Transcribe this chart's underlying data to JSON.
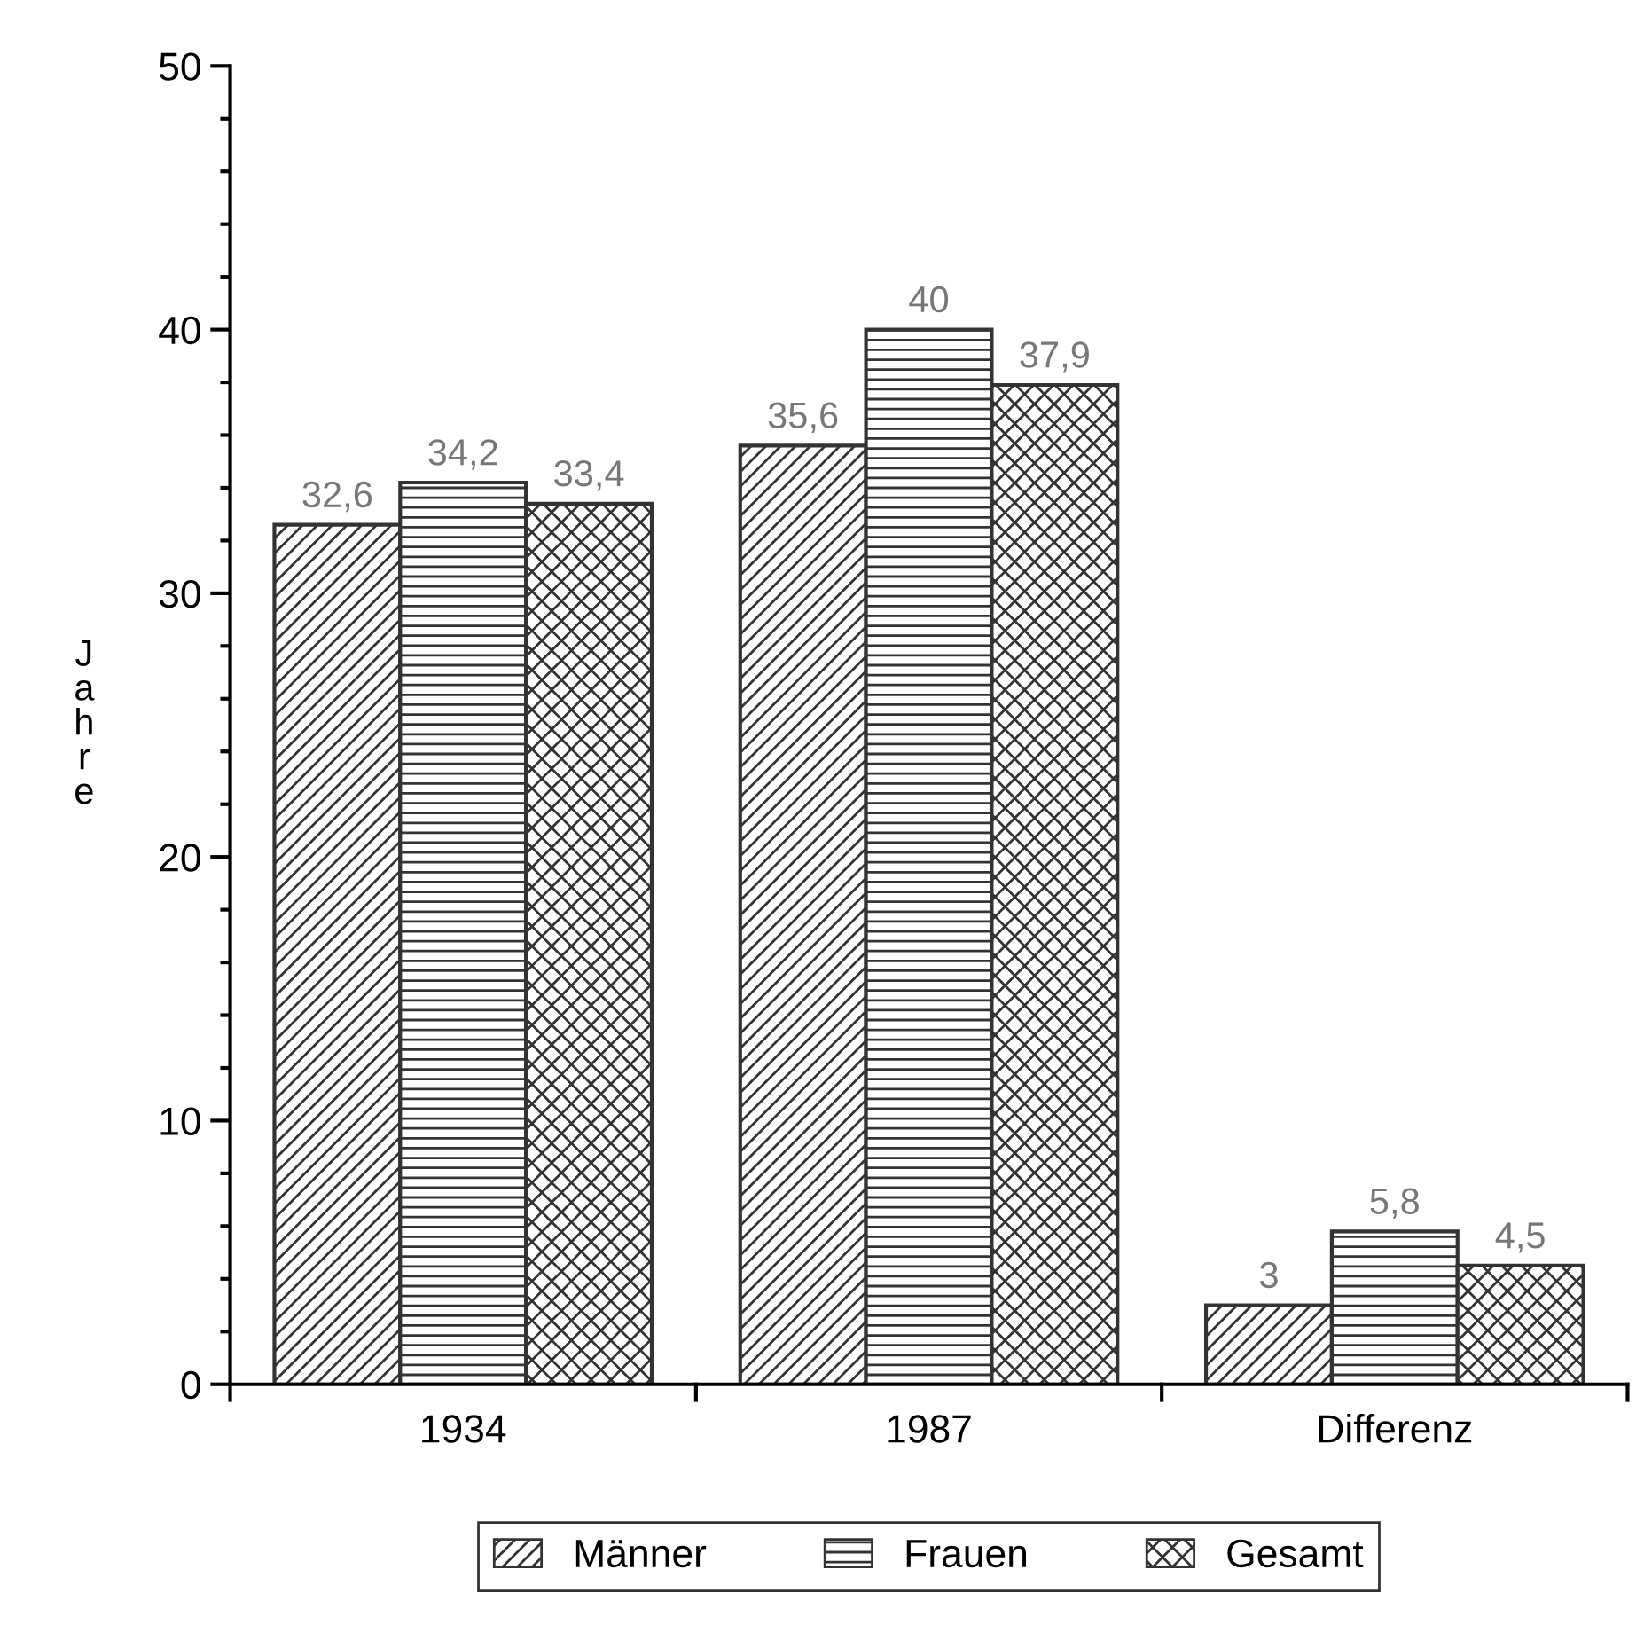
{
  "chart_data": {
    "type": "bar",
    "ylabel": "Jahre",
    "categories": [
      "1934",
      "1987",
      "Differenz"
    ],
    "series": [
      {
        "name": "Männer",
        "color": "#333333",
        "values": [
          32.6,
          35.6,
          3
        ],
        "value_labels": [
          "32,6",
          "35,6",
          "3"
        ]
      },
      {
        "name": "Frauen",
        "color": "#333333",
        "values": [
          34.2,
          40,
          5.8
        ],
        "value_labels": [
          "34,2",
          "40",
          "5,8"
        ]
      },
      {
        "name": "Gesamt",
        "color": "#333333",
        "values": [
          33.4,
          37.9,
          4.5
        ],
        "value_labels": [
          "33,4",
          "37,9",
          "4,5"
        ]
      }
    ],
    "ylim": [
      0,
      50
    ],
    "yticks": [
      0,
      {
        "value": 2,
        "label": null
      },
      {
        "value": 4,
        "label": null
      },
      {
        "value": 6,
        "label": null
      },
      {
        "value": 8,
        "label": null
      },
      10,
      {
        "value": 12,
        "label": null
      },
      {
        "value": 14,
        "label": null
      },
      {
        "value": 16,
        "label": null
      },
      {
        "value": 18,
        "label": null
      },
      20,
      {
        "value": 22,
        "label": null
      },
      {
        "value": 24,
        "label": null
      },
      {
        "value": 26,
        "label": null
      },
      {
        "value": 28,
        "label": null
      },
      30,
      {
        "value": 32,
        "label": null
      },
      {
        "value": 34,
        "label": null
      },
      {
        "value": 36,
        "label": null
      },
      {
        "value": 38,
        "label": null
      },
      40,
      {
        "value": 42,
        "label": null
      },
      {
        "value": 44,
        "label": null
      },
      {
        "value": 46,
        "label": null
      },
      {
        "value": 48,
        "label": null
      },
      50
    ],
    "grid": false,
    "legend": "bottom"
  }
}
